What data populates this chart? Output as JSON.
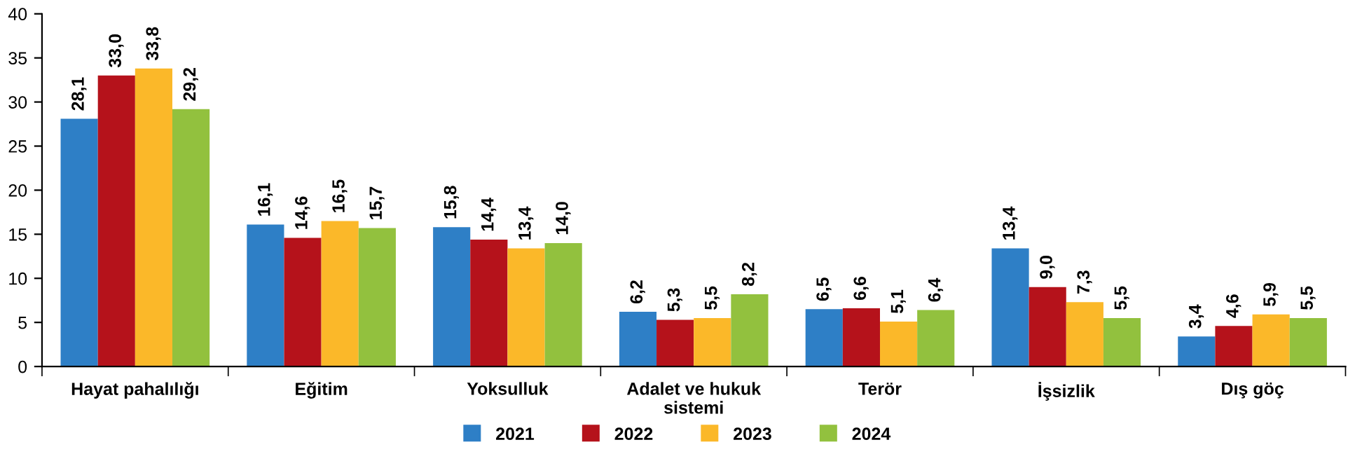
{
  "chart_data": {
    "type": "bar",
    "categories": [
      "Hayat pahalılığı",
      "Eğitim",
      "Yoksulluk",
      "Adalet ve hukuk\nsistemi",
      "Terör",
      "İşsizlik",
      "Dış göç"
    ],
    "series": [
      {
        "name": "2021",
        "color": "#2e7fc6",
        "values": [
          28.1,
          16.1,
          15.8,
          6.2,
          6.5,
          13.4,
          3.4
        ],
        "value_labels": [
          "28,1",
          "16,1",
          "15,8",
          "6,2",
          "6,5",
          "13,4",
          "3,4"
        ]
      },
      {
        "name": "2022",
        "color": "#b5121b",
        "values": [
          33.0,
          14.6,
          14.4,
          5.3,
          6.6,
          9.0,
          4.6
        ],
        "value_labels": [
          "33,0",
          "14,6",
          "14,4",
          "5,3",
          "6,6",
          "9,0",
          "4,6"
        ]
      },
      {
        "name": "2023",
        "color": "#fbb829",
        "values": [
          33.8,
          16.5,
          13.4,
          5.5,
          5.1,
          7.3,
          5.9
        ],
        "value_labels": [
          "33,8",
          "16,5",
          "13,4",
          "5,5",
          "5,1",
          "7,3",
          "5,9"
        ]
      },
      {
        "name": "2024",
        "color": "#92c13e",
        "values": [
          29.2,
          15.7,
          14.0,
          8.2,
          6.4,
          5.5,
          5.5
        ],
        "value_labels": [
          "29,2",
          "15,7",
          "14,0",
          "8,2",
          "6,4",
          "5,5",
          "5,5"
        ]
      }
    ],
    "ylim": [
      0,
      40
    ],
    "yticks": [
      0,
      5,
      10,
      15,
      20,
      25,
      30,
      35,
      40
    ],
    "grid": false,
    "legend": "bottom"
  }
}
